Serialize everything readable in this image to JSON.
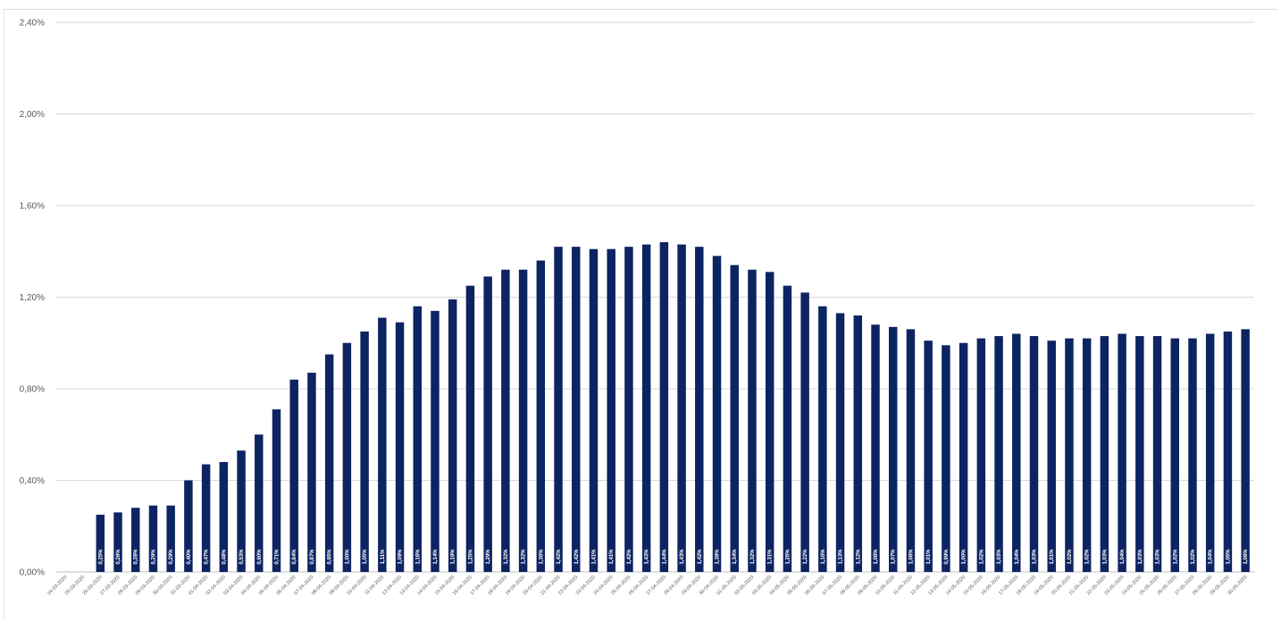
{
  "chart_data": {
    "type": "bar",
    "title": "",
    "xlabel": "",
    "ylabel": "",
    "ylim": [
      0,
      0.024
    ],
    "yticks": [
      "0,00%",
      "0,40%",
      "0,80%",
      "1,20%",
      "1,60%",
      "2,00%",
      "2,40%"
    ],
    "grid": true,
    "bar_color": "#0d2462",
    "label_color": "#ffffff",
    "categories": [
      "24-03-2020",
      "25-03-2020",
      "26-03-2020",
      "27-03-2020",
      "28-03-2020",
      "29-03-2020",
      "30-03-2020",
      "31-03-2020",
      "01-04-2020",
      "02-04-2020",
      "03-04-2020",
      "04-04-2020",
      "05-04-2020",
      "06-04-2020",
      "07-04-2020",
      "08-04-2020",
      "09-04-2020",
      "10-04-2020",
      "11-04-2020",
      "12-04-2020",
      "13-04-2020",
      "14-04-2020",
      "15-04-2020",
      "16-04-2020",
      "17-04-2020",
      "18-04-2020",
      "19-04-2020",
      "20-04-2020",
      "21-04-2020",
      "22-04-2020",
      "23-04-2020",
      "24-04-2020",
      "25-04-2020",
      "26-04-2020",
      "27-04-2020",
      "28-04-2020",
      "29-04-2020",
      "30-04-2020",
      "01-05-2020",
      "02-05-2020",
      "03-05-2020",
      "04-05-2020",
      "05-05-2020",
      "06-05-2020",
      "07-05-2020",
      "08-05-2020",
      "09-05-2020",
      "10-05-2020",
      "11-05-2020",
      "12-05-2020",
      "13-05-2020",
      "14-05-2020",
      "15-05-2020",
      "16-05-2020",
      "17-05-2020",
      "18-05-2020",
      "19-05-2020",
      "20-05-2020",
      "21-05-2020",
      "22-05-2020",
      "23-05-2020",
      "24-05-2020",
      "25-05-2020",
      "26-05-2020",
      "27-05-2020",
      "28-05-2020",
      "29-05-2020",
      "30-05-2020"
    ],
    "values": [
      null,
      null,
      0.0025,
      0.0026,
      0.0028,
      0.0029,
      0.0029,
      0.004,
      0.0047,
      0.0048,
      0.0053,
      0.006,
      0.0071,
      0.0084,
      0.0087,
      0.0095,
      0.01,
      0.0105,
      0.0111,
      0.0109,
      0.0116,
      0.0114,
      0.0119,
      0.0125,
      0.0129,
      0.0132,
      0.0132,
      0.0136,
      0.0142,
      0.0142,
      0.0141,
      0.0141,
      0.0142,
      0.0143,
      0.0144,
      0.0143,
      0.0142,
      0.0138,
      0.0134,
      0.0132,
      0.0131,
      0.0125,
      0.0122,
      0.0116,
      0.0113,
      0.0112,
      0.0108,
      0.0107,
      0.0106,
      0.0101,
      0.0099,
      0.01,
      0.0102,
      0.0103,
      0.0104,
      0.0103,
      0.0101,
      0.0102,
      0.0102,
      0.0103,
      0.0104,
      0.0103,
      0.0103,
      0.0102,
      0.0102,
      0.0104,
      0.0105,
      0.0106
    ],
    "data_labels": [
      "",
      "",
      "0,25%",
      "0,26%",
      "0,28%",
      "0,29%",
      "0,29%",
      "0,40%",
      "0,47%",
      "0,48%",
      "0,53%",
      "0,60%",
      "0,71%",
      "0,84%",
      "0,87%",
      "0,95%",
      "1,00%",
      "1,05%",
      "1,11%",
      "1,09%",
      "1,16%",
      "1,14%",
      "1,19%",
      "1,25%",
      "1,29%",
      "1,32%",
      "1,32%",
      "1,36%",
      "1,42%",
      "1,42%",
      "1,41%",
      "1,41%",
      "1,42%",
      "1,43%",
      "1,44%",
      "1,43%",
      "1,42%",
      "1,38%",
      "1,34%",
      "1,32%",
      "1,31%",
      "1,25%",
      "1,22%",
      "1,16%",
      "1,13%",
      "1,12%",
      "1,08%",
      "1,07%",
      "1,06%",
      "1,01%",
      "0,99%",
      "1,00%",
      "1,02%",
      "1,03%",
      "1,04%",
      "1,03%",
      "1,01%",
      "1,02%",
      "1,02%",
      "1,03%",
      "1,04%",
      "1,03%",
      "1,03%",
      "1,02%",
      "1,02%",
      "1,04%",
      "1,05%",
      "1,06%"
    ]
  }
}
